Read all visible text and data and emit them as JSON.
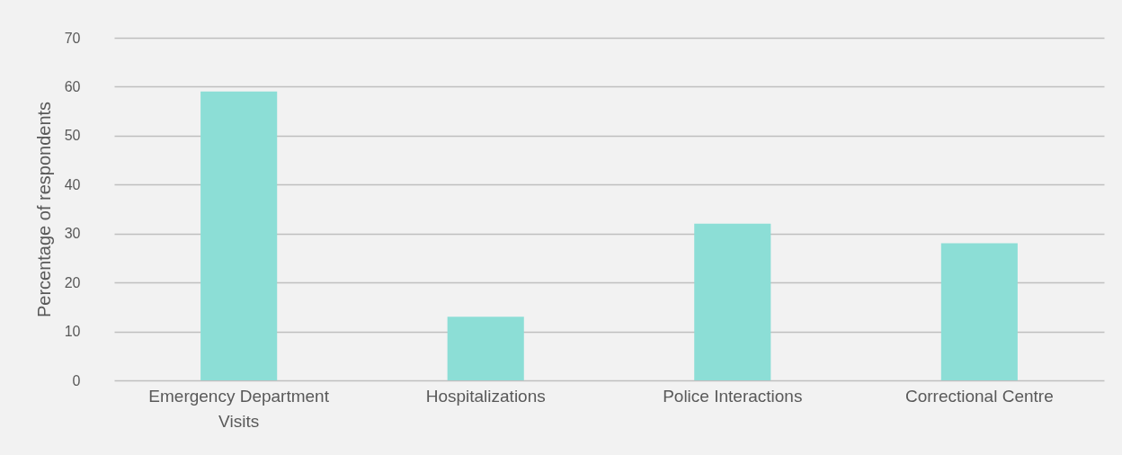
{
  "chart_data": {
    "type": "bar",
    "ylabel": "Percentage of respondents",
    "categories": [
      "Emergency Department Visits",
      "Hospitalizations",
      "Police Interactions",
      "Correctional Centre"
    ],
    "values": [
      59,
      13,
      32,
      28
    ],
    "color": "#8cded6",
    "ylim": [
      0,
      70
    ],
    "yticks": [
      0,
      10,
      20,
      30,
      40,
      50,
      60,
      70
    ],
    "grid": "y"
  }
}
